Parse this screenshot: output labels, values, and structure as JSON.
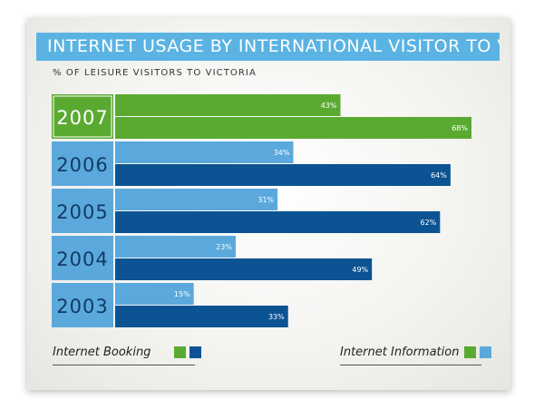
{
  "title": "INTERNET USAGE BY INTERNATIONAL VISITOR TO VICTORIA",
  "subtitle": "% OF LEISURE VISITORS TO VICTORIA",
  "colors": {
    "booking_highlight": "#5aaa32",
    "information_highlight": "#5aaa32",
    "booking": "#5ba9dc",
    "information": "#0b5393",
    "label_box": "#5ba9dc",
    "label_box_highlight": "#5aaa32"
  },
  "legend": {
    "booking_label": "Internet Booking",
    "information_label": "Internet Information"
  },
  "chart_data": {
    "type": "bar",
    "orientation": "horizontal",
    "title": "INTERNET USAGE BY INTERNATIONAL VISITOR TO VICTORIA",
    "subtitle": "% OF LEISURE VISITORS TO VICTORIA",
    "categories": [
      "2007",
      "2006",
      "2005",
      "2004",
      "2003"
    ],
    "highlighted_category": "2007",
    "series": [
      {
        "name": "Internet Booking",
        "values": [
          43,
          34,
          31,
          23,
          15
        ]
      },
      {
        "name": "Internet Information",
        "values": [
          68,
          64,
          62,
          49,
          33
        ]
      }
    ],
    "data_labels": {
      "Internet Booking": [
        "43%",
        "34%",
        "31%",
        "23%",
        "15%"
      ],
      "Internet Information": [
        "68%",
        "64%",
        "62%",
        "49%",
        "33%"
      ]
    },
    "xlim": [
      0,
      68
    ],
    "grid": false,
    "legend_position": "bottom"
  }
}
